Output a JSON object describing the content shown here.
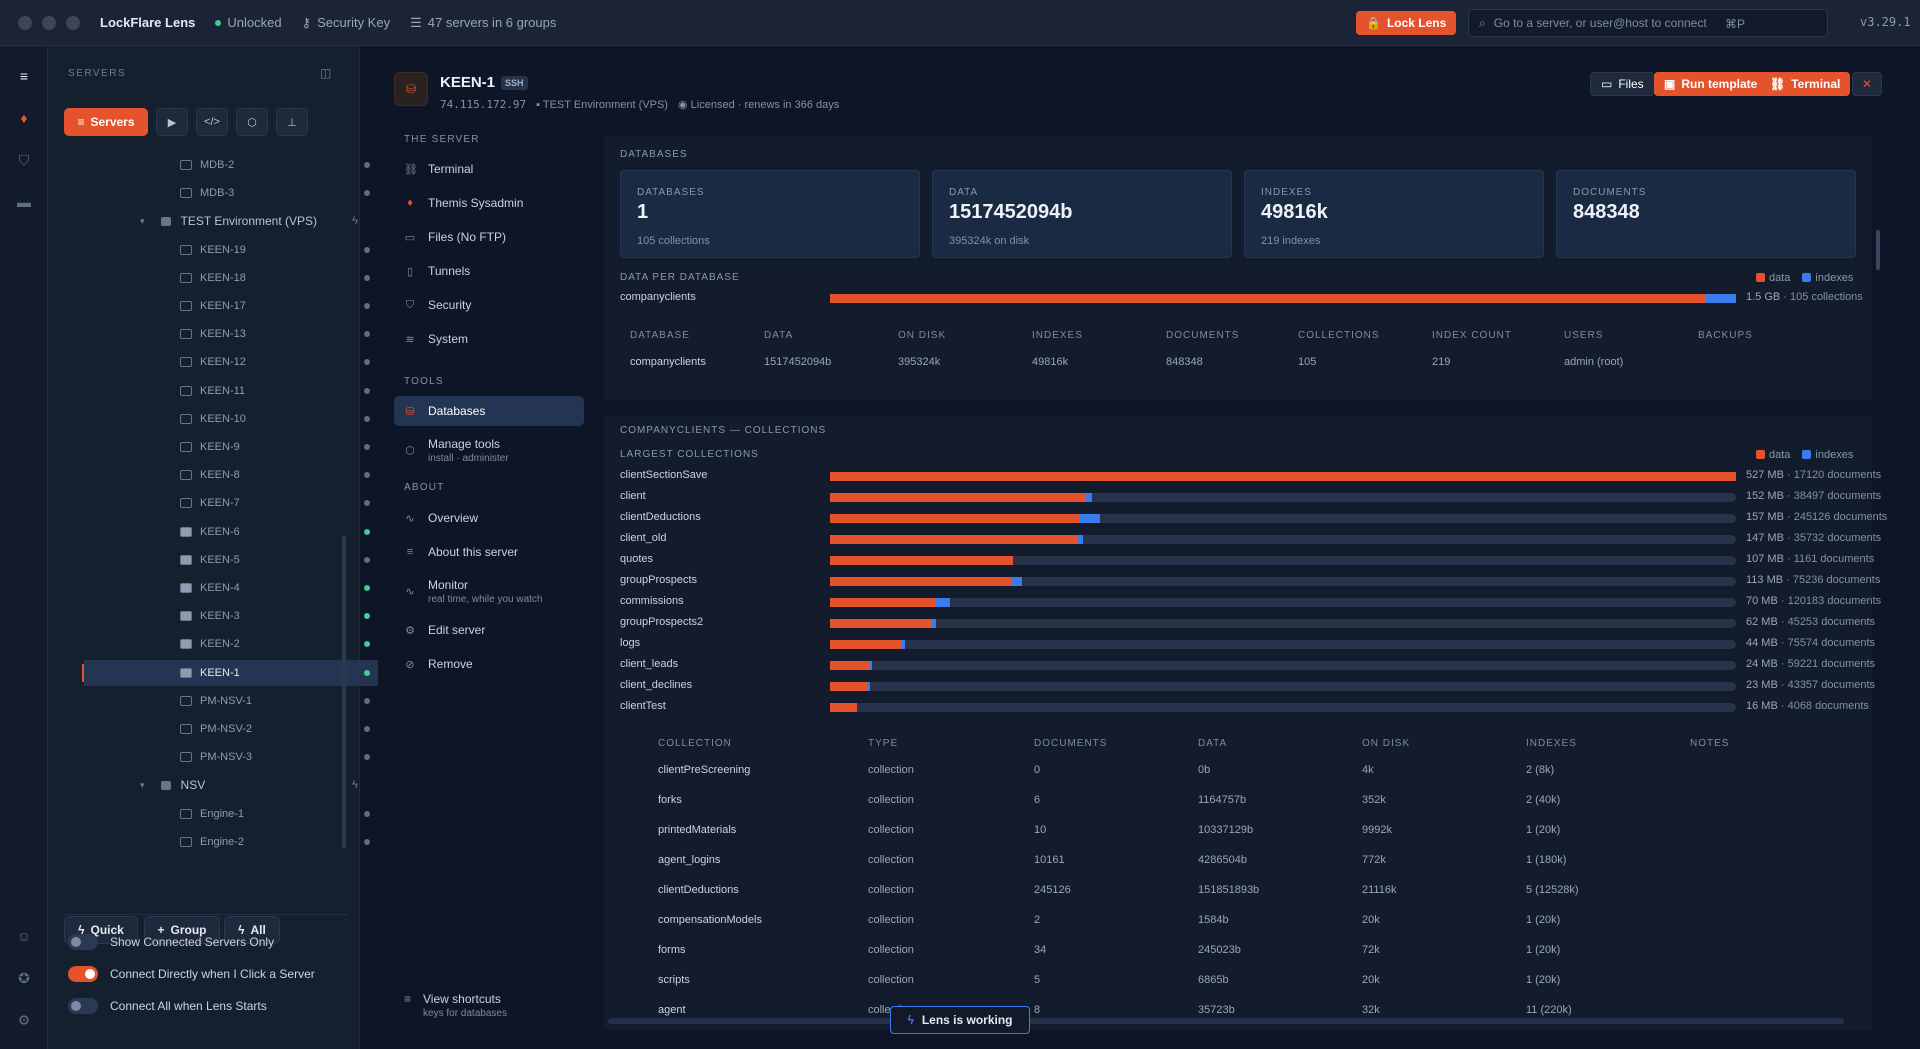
{
  "titlebar": {
    "app": "LockFlare Lens",
    "status": "Unlocked",
    "security_key": "Security Key",
    "servers_summary": "47 servers in 6 groups",
    "lock_label": "Lock Lens",
    "search_placeholder": "Go to a server, or user@host to connect",
    "shortcut": "⌘P",
    "version": "v3.29.1"
  },
  "sidebar": {
    "heading": "SERVERS",
    "servers_btn": "Servers",
    "rows": [
      {
        "type": "item",
        "name": "MDB-2",
        "on": false,
        "ssh": false
      },
      {
        "type": "item",
        "name": "MDB-3",
        "on": false,
        "ssh": false
      },
      {
        "type": "group",
        "name": "TEST Environment (VPS)"
      },
      {
        "type": "item",
        "name": "KEEN-19",
        "on": false,
        "ssh": false
      },
      {
        "type": "item",
        "name": "KEEN-18",
        "on": false,
        "ssh": false
      },
      {
        "type": "item",
        "name": "KEEN-17",
        "on": false,
        "ssh": false
      },
      {
        "type": "item",
        "name": "KEEN-13",
        "on": false,
        "ssh": false
      },
      {
        "type": "item",
        "name": "KEEN-12",
        "on": false,
        "ssh": false
      },
      {
        "type": "item",
        "name": "KEEN-11",
        "on": false,
        "ssh": false
      },
      {
        "type": "item",
        "name": "KEEN-10",
        "on": false,
        "ssh": false
      },
      {
        "type": "item",
        "name": "KEEN-9",
        "on": false,
        "ssh": false
      },
      {
        "type": "item",
        "name": "KEEN-8",
        "on": false,
        "ssh": false
      },
      {
        "type": "item",
        "name": "KEEN-7",
        "on": false,
        "ssh": false
      },
      {
        "type": "item",
        "name": "KEEN-6",
        "on": true,
        "ssh": true
      },
      {
        "type": "item",
        "name": "KEEN-5",
        "on": false,
        "ssh": true
      },
      {
        "type": "item",
        "name": "KEEN-4",
        "on": true,
        "ssh": true
      },
      {
        "type": "item",
        "name": "KEEN-3",
        "on": true,
        "ssh": true
      },
      {
        "type": "item",
        "name": "KEEN-2",
        "on": true,
        "ssh": true
      },
      {
        "type": "item",
        "name": "KEEN-1",
        "on": true,
        "ssh": true,
        "active": true
      },
      {
        "type": "item",
        "name": "PM-NSV-1",
        "on": false,
        "ssh": false
      },
      {
        "type": "item",
        "name": "PM-NSV-2",
        "on": false,
        "ssh": false
      },
      {
        "type": "item",
        "name": "PM-NSV-3",
        "on": false,
        "ssh": false
      },
      {
        "type": "group",
        "name": "NSV"
      },
      {
        "type": "item",
        "name": "Engine-1",
        "on": false,
        "ssh": false
      },
      {
        "type": "item",
        "name": "Engine-2",
        "on": false,
        "ssh": false
      }
    ],
    "quick": "Quick",
    "group": "Group",
    "all": "All",
    "toggles": [
      {
        "label": "Show Connected Servers Only",
        "on": false
      },
      {
        "label": "Connect Directly when I Click a Server",
        "on": true
      },
      {
        "label": "Connect All when Lens Starts",
        "on": false
      }
    ]
  },
  "header": {
    "name": "KEEN-1",
    "badge": "SSH",
    "ip": "74.115.172.97",
    "env": "TEST Environment (VPS)",
    "license": "Licensed · renews in 366 days",
    "files": "Files",
    "run_template": "Run template",
    "terminal": "Terminal"
  },
  "nav": {
    "sec_server": "THE SERVER",
    "sec_tools": "TOOLS",
    "sec_about": "ABOUT",
    "terminal": "Terminal",
    "themis": "Themis Sysadmin",
    "files": "Files (No FTP)",
    "tunnels": "Tunnels",
    "security": "Security",
    "system": "System",
    "databases": "Databases",
    "manage": "Manage tools",
    "manage_sub": "install · administer",
    "overview": "Overview",
    "about": "About this server",
    "monitor": "Monitor",
    "monitor_sub": "real time, while you watch",
    "edit": "Edit server",
    "remove": "Remove",
    "shortcuts": "View shortcuts",
    "shortcuts_sub": "keys for databases"
  },
  "databases": {
    "title": "DATABASES",
    "stats": [
      {
        "label": "DATABASES",
        "value": "1",
        "sub": "105 collections"
      },
      {
        "label": "DATA",
        "value": "1517452094b",
        "sub": "395324k on disk"
      },
      {
        "label": "INDEXES",
        "value": "49816k",
        "sub": "219 indexes"
      },
      {
        "label": "DOCUMENTS",
        "value": "848348",
        "sub": ""
      }
    ],
    "per_db_title": "DATA PER DATABASE",
    "legend_data": "data",
    "legend_indexes": "indexes",
    "per_db": [
      {
        "name": "companyclients",
        "data": 0.967,
        "index": 0.033,
        "size": "1.5 GB",
        "note": "105 collections"
      }
    ],
    "table_headers": [
      "DATABASE",
      "DATA",
      "ON DISK",
      "INDEXES",
      "DOCUMENTS",
      "COLLECTIONS",
      "INDEX COUNT",
      "USERS",
      "BACKUPS"
    ],
    "table_rows": [
      [
        "companyclients",
        "1517452094b",
        "395324k",
        "49816k",
        "848348",
        "105",
        "219",
        "admin (root)",
        ""
      ]
    ]
  },
  "collections": {
    "title": "COMPANYCLIENTS — COLLECTIONS",
    "largest_title": "LARGEST COLLECTIONS",
    "legend_data": "data",
    "legend_indexes": "indexes",
    "bars": [
      {
        "name": "clientSectionSave",
        "data": 1.0,
        "index": 0.0,
        "size": "527 MB",
        "docs": "17120 documents"
      },
      {
        "name": "client",
        "data": 0.283,
        "index": 0.006,
        "size": "152 MB",
        "docs": "38497 documents"
      },
      {
        "name": "clientDeductions",
        "data": 0.276,
        "index": 0.022,
        "size": "157 MB",
        "docs": "245126 documents"
      },
      {
        "name": "client_old",
        "data": 0.274,
        "index": 0.005,
        "size": "147 MB",
        "docs": "35732 documents"
      },
      {
        "name": "quotes",
        "data": 0.202,
        "index": 0.0,
        "size": "107 MB",
        "docs": "1161 documents"
      },
      {
        "name": "groupProspects",
        "data": 0.2,
        "index": 0.012,
        "size": "113 MB",
        "docs": "75236 documents"
      },
      {
        "name": "commissions",
        "data": 0.117,
        "index": 0.015,
        "size": "70 MB",
        "docs": "120183 documents"
      },
      {
        "name": "groupProspects2",
        "data": 0.111,
        "index": 0.006,
        "size": "62 MB",
        "docs": "45253 documents"
      },
      {
        "name": "logs",
        "data": 0.08,
        "index": 0.003,
        "size": "44 MB",
        "docs": "75574 documents"
      },
      {
        "name": "client_leads",
        "data": 0.044,
        "index": 0.002,
        "size": "24 MB",
        "docs": "59221 documents"
      },
      {
        "name": "client_declines",
        "data": 0.041,
        "index": 0.003,
        "size": "23 MB",
        "docs": "43357 documents"
      },
      {
        "name": "clientTest",
        "data": 0.03,
        "index": 0.0,
        "size": "16 MB",
        "docs": "4068 documents"
      }
    ],
    "headers": [
      "COLLECTION",
      "TYPE",
      "DOCUMENTS",
      "DATA",
      "ON DISK",
      "INDEXES",
      "NOTES"
    ],
    "rows": [
      [
        "clientPreScreening",
        "collection",
        "0",
        "0b",
        "4k",
        "2 (8k)",
        ""
      ],
      [
        "forks",
        "collection",
        "6",
        "1164757b",
        "352k",
        "2 (40k)",
        ""
      ],
      [
        "printedMaterials",
        "collection",
        "10",
        "10337129b",
        "9992k",
        "1 (20k)",
        ""
      ],
      [
        "agent_logins",
        "collection",
        "10161",
        "4286504b",
        "772k",
        "1 (180k)",
        ""
      ],
      [
        "clientDeductions",
        "collection",
        "245126",
        "151851893b",
        "21116k",
        "5 (12528k)",
        ""
      ],
      [
        "compensationModels",
        "collection",
        "2",
        "1584b",
        "20k",
        "1 (20k)",
        ""
      ],
      [
        "forms",
        "collection",
        "34",
        "245023b",
        "72k",
        "1 (20k)",
        ""
      ],
      [
        "scripts",
        "collection",
        "5",
        "6865b",
        "20k",
        "1 (20k)",
        ""
      ],
      [
        "agent",
        "collection",
        "8",
        "35723b",
        "32k",
        "11 (220k)",
        ""
      ]
    ]
  },
  "working": "Lens is working"
}
